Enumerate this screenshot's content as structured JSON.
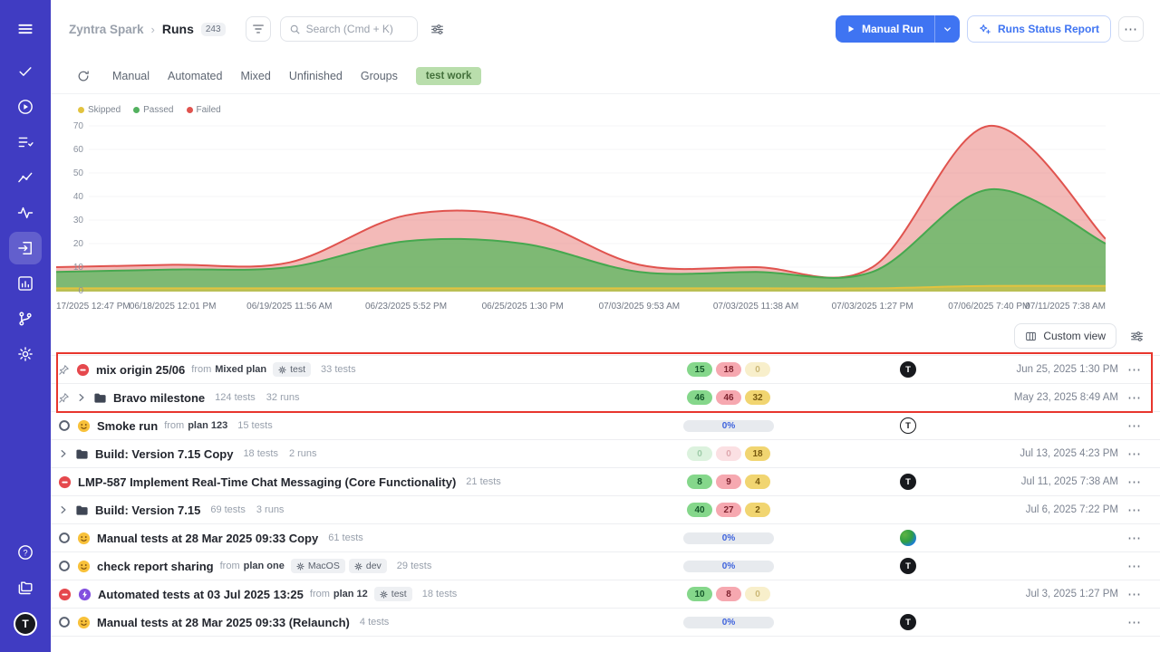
{
  "ui": {
    "from": "from"
  },
  "colors": {
    "sidebar": "#403CC2",
    "accent_blue": "#3F74F2",
    "annotation_red": "#E8362D",
    "tag_green_bg": "#B9DEAC"
  },
  "sidebar": {
    "icons": [
      "menu",
      "tasks-check",
      "run-play",
      "test-cases",
      "results-chart",
      "activity",
      "runs",
      "reports",
      "branches",
      "settings",
      "help",
      "projects"
    ],
    "avatar_letter": "T"
  },
  "header": {
    "project": "Zyntra Spark",
    "separator": "›",
    "page": "Runs",
    "count": "243",
    "search_placeholder": "Search (Cmd + K)",
    "manual_run_label": "Manual Run",
    "report_label": "Runs Status Report"
  },
  "tabs": {
    "items": [
      "Manual",
      "Automated",
      "Mixed",
      "Unfinished",
      "Groups"
    ],
    "tag": "test work"
  },
  "legend": [
    {
      "label": "Skipped",
      "color": "#E2C33F"
    },
    {
      "label": "Passed",
      "color": "#53B15F"
    },
    {
      "label": "Failed",
      "color": "#E0534E"
    }
  ],
  "chart_data": {
    "type": "area",
    "title": "",
    "x_labels": [
      "17/2025 12:47 PM",
      "06/18/2025 12:01 PM",
      "06/19/2025 11:56 AM",
      "06/23/2025 5:52 PM",
      "06/25/2025 1:30 PM",
      "07/03/2025 9:53 AM",
      "07/03/2025 11:38 AM",
      "07/03/2025 1:27 PM",
      "07/06/2025 7:40 PM",
      "07/11/2025 7:38 AM"
    ],
    "y_ticks": [
      0,
      10,
      20,
      30,
      40,
      50,
      60,
      70
    ],
    "ylim": [
      0,
      70
    ],
    "legend_position": "top-left",
    "grid": false,
    "series": [
      {
        "name": "Failed",
        "color": "#E0534E",
        "fill": "rgba(228,103,98,0.45)",
        "values": [
          10,
          11,
          12,
          32,
          31,
          11,
          10,
          10,
          70,
          22
        ]
      },
      {
        "name": "Passed",
        "color": "#46A84F",
        "fill": "rgba(92,184,98,0.78)",
        "values": [
          8,
          9,
          10,
          21,
          20,
          8,
          8,
          8,
          43,
          20
        ]
      },
      {
        "name": "Skipped",
        "color": "#E2C33F",
        "fill": "rgba(226,195,63,0.6)",
        "values": [
          1,
          1,
          1,
          1,
          1,
          1,
          1,
          1,
          2,
          2
        ]
      }
    ]
  },
  "toolbar": {
    "custom_view": "Custom view"
  },
  "runs": [
    {
      "pinned": true,
      "status": "failed",
      "title": "mix origin 25/06",
      "from": "Mixed plan",
      "badges": [
        "test"
      ],
      "meta": [
        "33 tests"
      ],
      "pills": [
        {
          "v": "15",
          "c": "green"
        },
        {
          "v": "18",
          "c": "red"
        },
        {
          "v": "0",
          "c": "yellow",
          "dim": true
        }
      ],
      "avatar": {
        "style": "dark",
        "letter": "T"
      },
      "date": "Jun 25, 2025 1:30 PM"
    },
    {
      "pinned": true,
      "expand": true,
      "folder": true,
      "title": "Bravo milestone",
      "meta": [
        "124 tests",
        "32 runs"
      ],
      "pills": [
        {
          "v": "46",
          "c": "green"
        },
        {
          "v": "46",
          "c": "red"
        },
        {
          "v": "32",
          "c": "yellow"
        }
      ],
      "date": "May 23, 2025 8:49 AM"
    },
    {
      "status": "ring",
      "kind": "manual",
      "title": "Smoke run",
      "from": "plan 123",
      "meta": [
        "15 tests"
      ],
      "progress": "0%",
      "avatar": {
        "style": "outline",
        "letter": "T"
      },
      "date": ""
    },
    {
      "expand": true,
      "folder": true,
      "title": "Build: Version 7.15 Copy",
      "meta": [
        "18 tests",
        "2 runs"
      ],
      "pills": [
        {
          "v": "0",
          "c": "green",
          "dim": true
        },
        {
          "v": "0",
          "c": "red",
          "dim": true
        },
        {
          "v": "18",
          "c": "yellow"
        }
      ],
      "date": "Jul 13, 2025 4:23 PM"
    },
    {
      "status": "failed",
      "title": "LMP-587 Implement Real-Time Chat Messaging (Core Functionality)",
      "meta": [
        "21 tests"
      ],
      "pills": [
        {
          "v": "8",
          "c": "green"
        },
        {
          "v": "9",
          "c": "red"
        },
        {
          "v": "4",
          "c": "yellow"
        }
      ],
      "avatar": {
        "style": "dark",
        "letter": "T"
      },
      "date": "Jul 11, 2025 7:38 AM"
    },
    {
      "expand": true,
      "folder": true,
      "title": "Build: Version 7.15",
      "meta": [
        "69 tests",
        "3 runs"
      ],
      "pills": [
        {
          "v": "40",
          "c": "green"
        },
        {
          "v": "27",
          "c": "red"
        },
        {
          "v": "2",
          "c": "yellow"
        }
      ],
      "date": "Jul 6, 2025 7:22 PM"
    },
    {
      "status": "ring",
      "kind": "manual",
      "title": "Manual tests at 28 Mar 2025 09:33 Copy",
      "meta": [
        "61 tests"
      ],
      "progress": "0%",
      "avatar": {
        "style": "earth"
      },
      "date": ""
    },
    {
      "status": "ring",
      "kind": "manual",
      "title": "check report sharing",
      "from": "plan one",
      "badges": [
        "MacOS",
        "dev"
      ],
      "meta": [
        "29 tests"
      ],
      "progress": "0%",
      "avatar": {
        "style": "dark",
        "letter": "T"
      },
      "date": ""
    },
    {
      "status": "failed",
      "kind": "auto",
      "title": "Automated tests at 03 Jul 2025 13:25",
      "from": "plan 12",
      "badges": [
        "test"
      ],
      "meta": [
        "18 tests"
      ],
      "pills": [
        {
          "v": "10",
          "c": "green"
        },
        {
          "v": "8",
          "c": "red"
        },
        {
          "v": "0",
          "c": "yellow",
          "dim": true
        }
      ],
      "date": "Jul 3, 2025 1:27 PM"
    },
    {
      "status": "ring",
      "kind": "manual",
      "title": "Manual tests at 28 Mar 2025 09:33 (Relaunch)",
      "meta": [
        "4 tests"
      ],
      "progress": "0%",
      "avatar": {
        "style": "dark",
        "letter": "T"
      },
      "date": ""
    }
  ]
}
